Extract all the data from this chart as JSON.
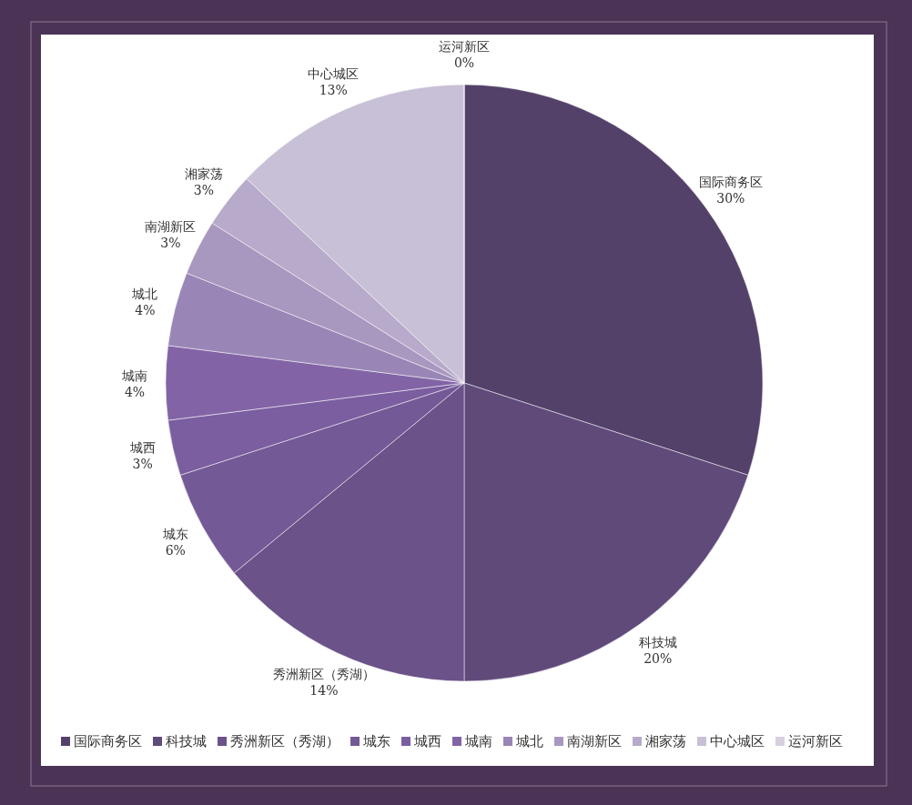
{
  "chart_data": {
    "type": "pie",
    "categories": [
      "国际商务区",
      "科技城",
      "秀洲新区（秀湖）",
      "城东",
      "城西",
      "城南",
      "城北",
      "南湖新区",
      "湘家荡",
      "中心城区",
      "运河新区"
    ],
    "values": [
      30,
      20,
      14,
      6,
      3,
      4,
      4,
      3,
      3,
      13,
      0
    ],
    "colors": [
      "#53416a",
      "#5f4a7a",
      "#6b5289",
      "#735a96",
      "#7a5ea0",
      "#8264a6",
      "#9a86b6",
      "#a898c0",
      "#b8aacb",
      "#c8c0d6",
      "#d6d0e0"
    ],
    "value_labels": [
      "30%",
      "20%",
      "14%",
      "6%",
      "3%",
      "4%",
      "4%",
      "3%",
      "3%",
      "13%",
      "0%"
    ],
    "legend": "bottom"
  }
}
